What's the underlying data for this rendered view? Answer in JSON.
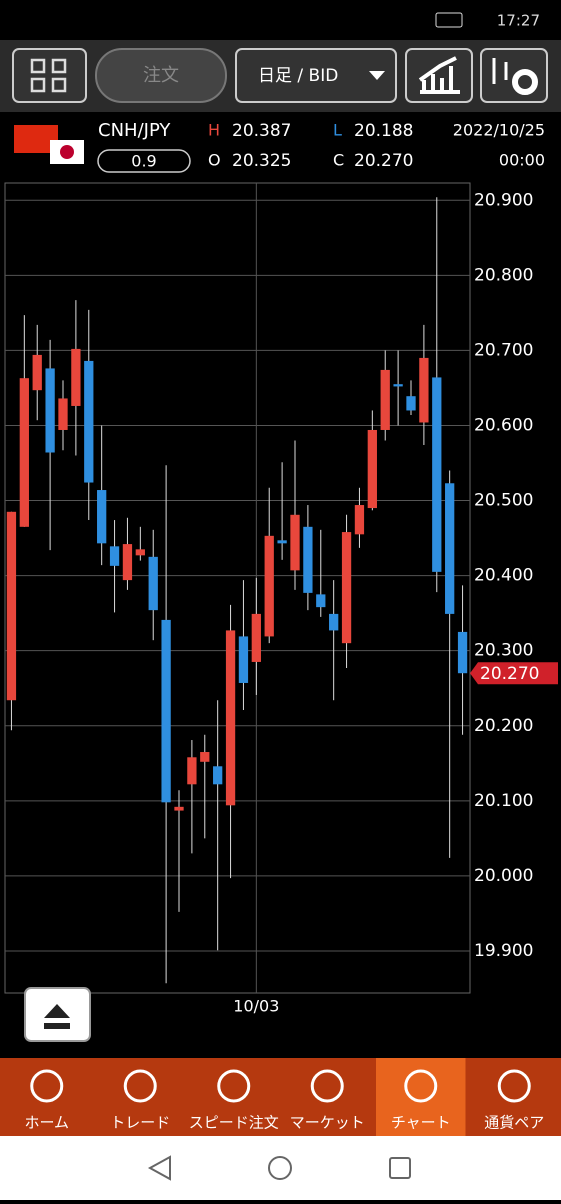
{
  "status_bar": {
    "time": "17:27"
  },
  "toolbar": {
    "order_button": "注文",
    "timeframe": "日足 / BID"
  },
  "quote": {
    "symbol": "CNH/JPY",
    "spread": "0.9",
    "high_label": "H",
    "high": "20.387",
    "low_label": "L",
    "low": "20.188",
    "open_label": "O",
    "open": "20.325",
    "close_label": "C",
    "close": "20.270",
    "date": "2022/10/25",
    "time": "00:00"
  },
  "chart_data": {
    "type": "candlestick",
    "categories": [
      null,
      null,
      null,
      null,
      null,
      null,
      null,
      null,
      null,
      null,
      null,
      null,
      null,
      null,
      null,
      null,
      null,
      null,
      null,
      "10/03",
      null,
      null,
      null,
      null,
      null,
      null,
      null,
      null,
      null,
      null,
      null,
      null,
      null,
      null,
      null,
      null
    ],
    "open": [
      20.234,
      20.465,
      20.647,
      20.676,
      20.594,
      20.626,
      20.686,
      20.514,
      20.439,
      20.394,
      20.427,
      20.425,
      20.341,
      20.087,
      20.122,
      20.152,
      20.146,
      20.094,
      20.319,
      20.285,
      20.319,
      20.447,
      20.407,
      20.465,
      20.375,
      20.349,
      20.31,
      20.455,
      20.49,
      20.594,
      20.655,
      20.639,
      20.604,
      20.664,
      20.523,
      20.325
    ],
    "high": [
      20.485,
      20.747,
      20.734,
      20.714,
      20.66,
      20.767,
      20.754,
      20.6,
      20.474,
      20.477,
      20.465,
      20.461,
      20.547,
      20.114,
      20.181,
      20.188,
      20.234,
      20.361,
      20.394,
      20.397,
      20.517,
      20.551,
      20.58,
      20.494,
      20.461,
      20.394,
      20.481,
      20.517,
      20.62,
      20.7,
      20.7,
      20.66,
      20.734,
      20.904,
      20.54,
      20.387
    ],
    "low": [
      20.194,
      20.465,
      20.607,
      20.434,
      20.567,
      20.56,
      20.474,
      20.414,
      20.351,
      20.381,
      20.42,
      20.314,
      19.857,
      19.952,
      20.03,
      20.05,
      19.901,
      19.997,
      20.221,
      20.241,
      20.31,
      20.421,
      20.381,
      20.354,
      20.345,
      20.234,
      20.277,
      20.437,
      20.487,
      20.58,
      20.6,
      20.614,
      20.574,
      20.378,
      20.024,
      20.188
    ],
    "close": [
      20.485,
      20.663,
      20.694,
      20.564,
      20.636,
      20.702,
      20.524,
      20.443,
      20.413,
      20.442,
      20.435,
      20.354,
      20.098,
      20.092,
      20.158,
      20.165,
      20.122,
      20.327,
      20.257,
      20.349,
      20.453,
      20.443,
      20.481,
      20.377,
      20.358,
      20.327,
      20.458,
      20.494,
      20.594,
      20.674,
      20.652,
      20.62,
      20.69,
      20.405,
      20.349,
      20.27
    ],
    "ylim": [
      19.844,
      20.923
    ],
    "yticks": [
      {
        "value": 19.9,
        "label": "19.900"
      },
      {
        "value": 20.0,
        "label": "20.000"
      },
      {
        "value": 20.1,
        "label": "20.100"
      },
      {
        "value": 20.2,
        "label": "20.200"
      },
      {
        "value": 20.3,
        "label": "20.300"
      },
      {
        "value": 20.4,
        "label": "20.400"
      },
      {
        "value": 20.5,
        "label": "20.500"
      },
      {
        "value": 20.6,
        "label": "20.600"
      },
      {
        "value": 20.7,
        "label": "20.700"
      },
      {
        "value": 20.8,
        "label": "20.800"
      },
      {
        "value": 20.9,
        "label": "20.900"
      }
    ],
    "grid": true,
    "up_color": "#e8473c",
    "down_color": "#2f8fe0",
    "current_price": {
      "value": 20.27,
      "label": "20.270"
    }
  },
  "nav": {
    "items": [
      "ホーム",
      "トレード",
      "スピード注文",
      "マーケット",
      "チャート",
      "通貨ペア"
    ],
    "active": 4
  }
}
